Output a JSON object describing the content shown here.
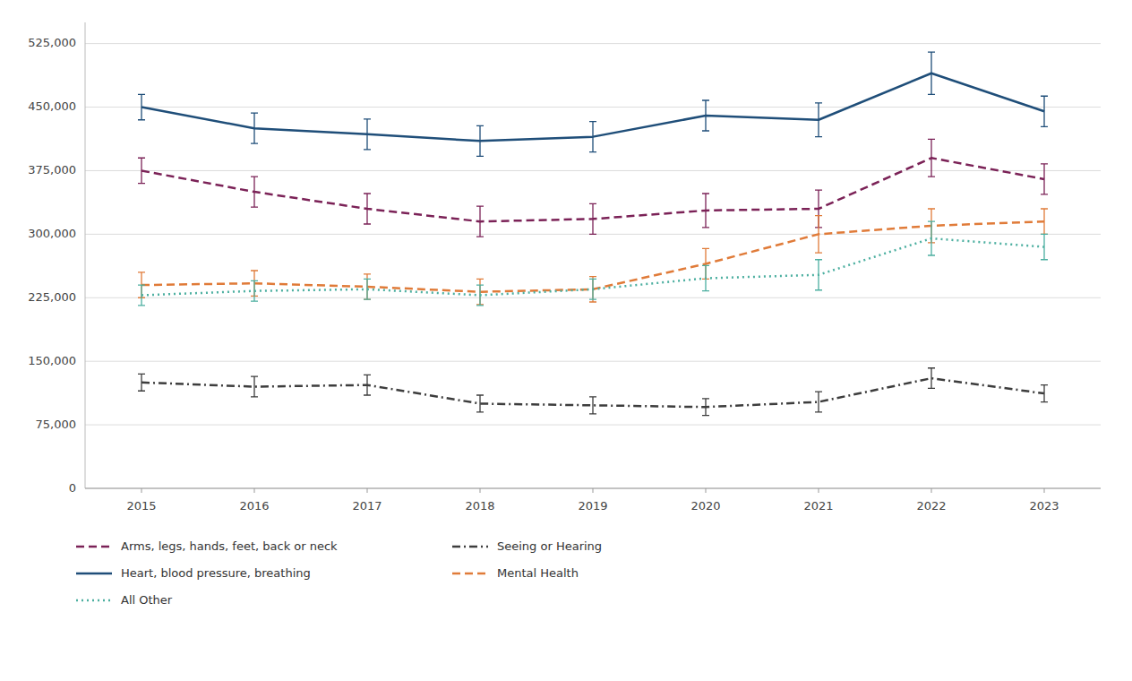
{
  "chart_data": {
    "type": "line",
    "x": [
      2015,
      2016,
      2017,
      2018,
      2019,
      2020,
      2021,
      2022,
      2023
    ],
    "xlim": [
      2014.5,
      2023.5
    ],
    "xticks": [
      2015,
      2016,
      2017,
      2018,
      2019,
      2020,
      2021,
      2022,
      2023
    ],
    "ylim": [
      0,
      550000
    ],
    "yticks": [
      0,
      {
        "value": 75000,
        "label": "75,000"
      },
      {
        "value": 150000,
        "label": "150,000"
      },
      {
        "value": 225000,
        "label": "225,000"
      },
      {
        "value": 300000,
        "label": "300,000"
      },
      {
        "value": 375000,
        "label": "375,000"
      },
      {
        "value": 450000,
        "label": "450,000"
      },
      {
        "value": 525000,
        "label": "525,000"
      }
    ],
    "grid": true,
    "legend": "bottom",
    "series": [
      {
        "name": "Arms, legs, hands, feet, back or neck",
        "color": "#7b2257",
        "line_style": "dashed",
        "values": [
          375000,
          350000,
          330000,
          315000,
          318000,
          328000,
          330000,
          390000,
          365000
        ],
        "errors": [
          15000,
          18000,
          18000,
          18000,
          18000,
          20000,
          22000,
          22000,
          18000
        ]
      },
      {
        "name": "Seeing or Hearing",
        "color": "#3d3d3d",
        "line_style": "dashdot",
        "values": [
          125000,
          120000,
          122000,
          100000,
          98000,
          96000,
          102000,
          130000,
          112000
        ],
        "errors": [
          10000,
          12000,
          12000,
          10000,
          10000,
          10000,
          12000,
          12000,
          10000
        ]
      },
      {
        "name": "Heart, blood pressure, breathing",
        "color": "#1f4e79",
        "line_style": "solid",
        "values": [
          450000,
          425000,
          418000,
          410000,
          415000,
          440000,
          435000,
          490000,
          445000
        ],
        "errors": [
          15000,
          18000,
          18000,
          18000,
          18000,
          18000,
          20000,
          25000,
          18000
        ]
      },
      {
        "name": "Mental Health",
        "color": "#e07b39",
        "line_style": "dashed",
        "values": [
          240000,
          242000,
          238000,
          232000,
          235000,
          265000,
          300000,
          310000,
          315000
        ],
        "errors": [
          15000,
          15000,
          15000,
          15000,
          15000,
          18000,
          22000,
          20000,
          15000
        ]
      },
      {
        "name": "All Other",
        "color": "#4cafa0",
        "line_style": "dotted",
        "values": [
          228000,
          233000,
          235000,
          228000,
          235000,
          248000,
          252000,
          295000,
          285000
        ],
        "errors": [
          12000,
          12000,
          12000,
          12000,
          12000,
          15000,
          18000,
          20000,
          15000
        ]
      }
    ]
  }
}
